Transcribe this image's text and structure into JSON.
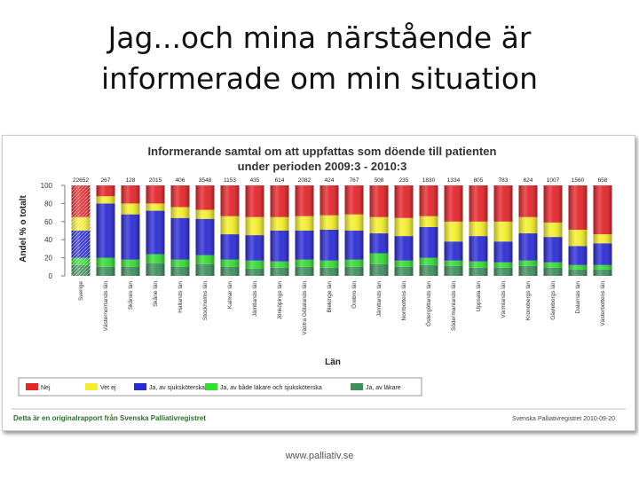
{
  "slide": {
    "title_line1": "Jag...och mina närstående är",
    "title_line2": "informerade om min situation",
    "footer": "www.palliativ.se"
  },
  "report": {
    "footer_left": "Detta är en originalrapport från Svenska Palliativregistret",
    "footer_right": "Svenska Palliativregistret 2010-09-20"
  },
  "chart_data": {
    "type": "bar",
    "stacked": true,
    "title": "Informerande samtal om att uppfattas som döende till patienten",
    "subtitle": "under perioden 2009:3 - 2010:3",
    "xlabel": "Län",
    "ylabel": "Andel % o totalt",
    "ylim": [
      0,
      100
    ],
    "yticks": [
      0,
      20,
      40,
      60,
      80,
      100
    ],
    "grid": false,
    "legend_position": "bottom",
    "categories": [
      "Sverige",
      "Västernorrlands län",
      "Skånes län",
      "Skåne län",
      "Hallands län",
      "Stockholms län",
      "Kalmar län",
      "Jämtlands län",
      "Jönköpings län",
      "Västra Götalands län",
      "Blekinge län",
      "Örebro län",
      "Jämtlands län",
      "Norrbottens län",
      "Östergötlands län",
      "Södermanlands län",
      "Uppsala län",
      "Värmlands län",
      "Kronobergs län",
      "Gävleborgs län",
      "Dalarnas län",
      "Västerbottens län"
    ],
    "counts": [
      "22652",
      "267",
      "128",
      "2015",
      "406",
      "3548",
      "1153",
      "435",
      "614",
      "2082",
      "424",
      "767",
      "508",
      "235",
      "1830",
      "1334",
      "805",
      "783",
      "624",
      "1007",
      "1560",
      "658"
    ],
    "series": [
      {
        "name": "Ja, av läkare",
        "color": "#3f8f5c",
        "values": [
          12,
          10,
          10,
          14,
          10,
          13,
          10,
          8,
          9,
          10,
          9,
          10,
          13,
          10,
          12,
          11,
          9,
          9,
          11,
          9,
          7,
          7
        ]
      },
      {
        "name": "Ja, av både läkare och sjuksköterska",
        "color": "#33dd33",
        "values": [
          8,
          10,
          8,
          10,
          8,
          10,
          8,
          9,
          7,
          8,
          8,
          8,
          12,
          7,
          8,
          6,
          7,
          6,
          6,
          6,
          5,
          5
        ]
      },
      {
        "name": "Ja, av sjuksköterska",
        "color": "#2b2bd6",
        "values": [
          30,
          60,
          50,
          48,
          46,
          40,
          28,
          28,
          34,
          32,
          34,
          32,
          22,
          27,
          34,
          21,
          28,
          23,
          30,
          28,
          21,
          24
        ]
      },
      {
        "name": "Vet ej",
        "color": "#f4ee2a",
        "values": [
          15,
          8,
          12,
          8,
          12,
          10,
          20,
          20,
          15,
          16,
          16,
          18,
          18,
          20,
          12,
          22,
          16,
          22,
          18,
          16,
          18,
          10
        ]
      },
      {
        "name": "Nej",
        "color": "#e4252a",
        "values": [
          35,
          12,
          20,
          20,
          24,
          27,
          34,
          35,
          35,
          34,
          33,
          32,
          35,
          36,
          34,
          40,
          40,
          40,
          35,
          41,
          49,
          54
        ]
      }
    ],
    "legend_order": [
      "Nej",
      "Vet ej",
      "Ja, av sjuksköterska",
      "Ja, av både läkare och sjuksköterska",
      "Ja, av läkare"
    ]
  }
}
